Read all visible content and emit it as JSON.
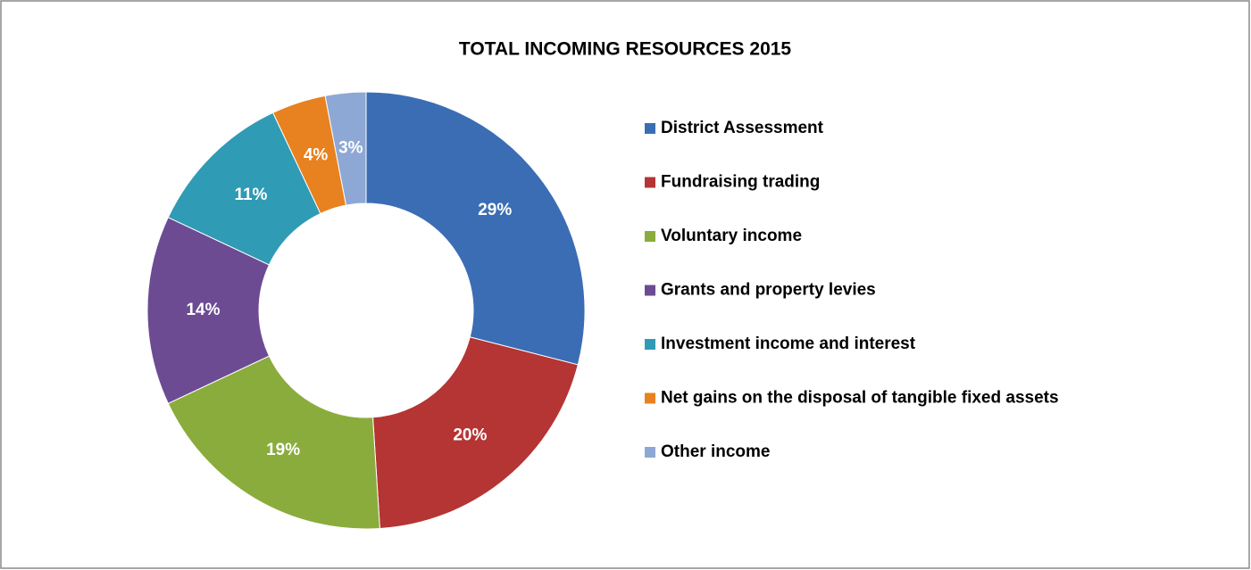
{
  "chart_data": {
    "type": "donut",
    "title": "TOTAL INCOMING RESOURCES 2015",
    "categories": [
      "District Assessment",
      "Fundraising trading",
      "Voluntary income",
      "Grants and property levies",
      "Investment income and interest",
      "Net gains on the disposal of tangible fixed assets",
      "Other income"
    ],
    "values": [
      29,
      20,
      19,
      14,
      11,
      4,
      3
    ],
    "value_labels": [
      "29%",
      "20%",
      "19%",
      "14%",
      "11%",
      "4%",
      "3%"
    ],
    "colors": [
      "#3b6db4",
      "#b53434",
      "#8aac3c",
      "#6c4b93",
      "#2f9bb4",
      "#e8811f",
      "#8ea8d5"
    ],
    "legend": "right"
  }
}
